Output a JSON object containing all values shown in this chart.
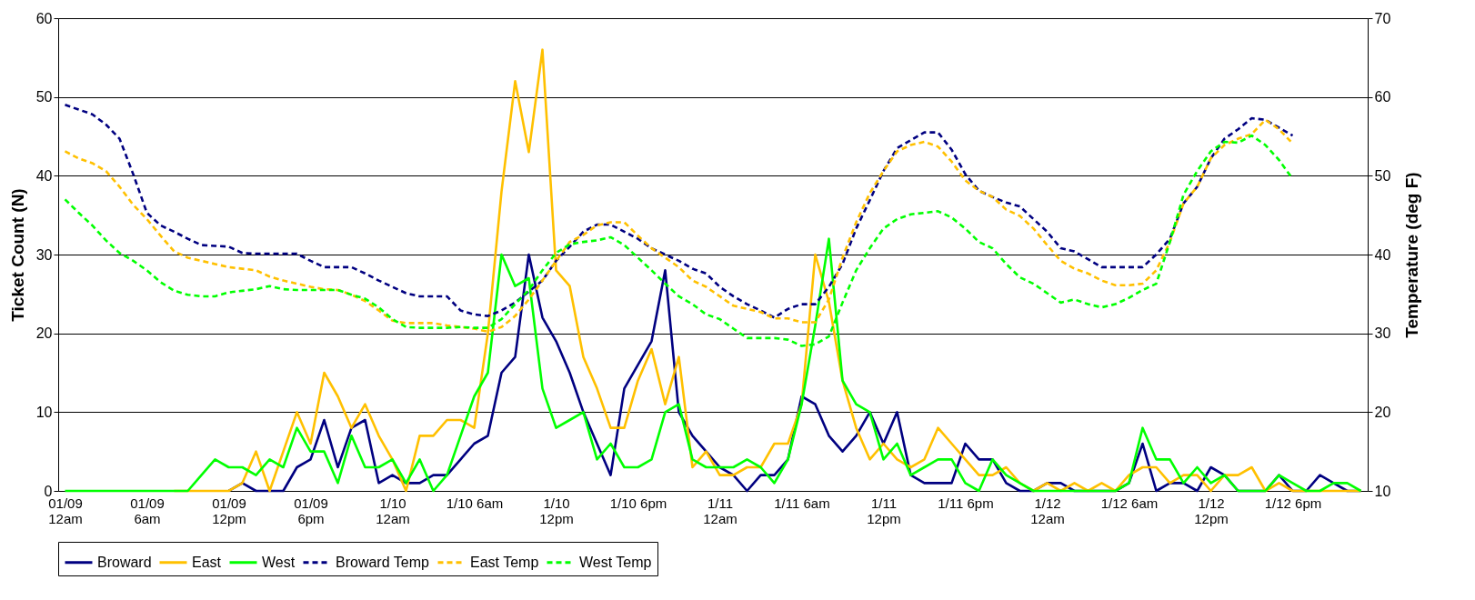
{
  "chart_data": {
    "type": "line",
    "ylabel": "Ticket Count (N)",
    "y2label": "Temperature (deg F)",
    "categories": [
      "01/09\n12am",
      null,
      null,
      null,
      null,
      null,
      "01/09\n6am",
      null,
      null,
      null,
      null,
      null,
      "01/09\n12pm",
      null,
      null,
      null,
      null,
      null,
      "01/09\n6pm",
      null,
      null,
      null,
      null,
      null,
      "1/10\n12am",
      null,
      null,
      null,
      null,
      null,
      "1/10 6am",
      null,
      null,
      null,
      null,
      null,
      "1/10\n12pm",
      null,
      null,
      null,
      null,
      null,
      "1/10 6pm",
      null,
      null,
      null,
      null,
      null,
      "1/11\n12am",
      null,
      null,
      null,
      null,
      null,
      "1/11 6am",
      null,
      null,
      null,
      null,
      null,
      "1/11\n12pm",
      null,
      null,
      null,
      null,
      null,
      "1/11 6pm",
      null,
      null,
      null,
      null,
      null,
      "1/12\n12am",
      null,
      null,
      null,
      null,
      null,
      "1/12 6am",
      null,
      null,
      null,
      null,
      null,
      "1/12\n12pm",
      null,
      null,
      null,
      null,
      null,
      "1/12 6pm",
      null,
      null,
      null,
      null,
      null
    ],
    "ylim": [
      0,
      60
    ],
    "yticks": [
      0,
      10,
      20,
      30,
      40,
      50,
      60
    ],
    "y2lim": [
      10,
      70
    ],
    "y2ticks": [
      10,
      20,
      30,
      40,
      50,
      60,
      70
    ],
    "grid": "y",
    "legend": "bottom",
    "marker": "none",
    "series": [
      {
        "name": "Broward",
        "color": "#000080",
        "line_style": "solid",
        "values": [
          null,
          null,
          null,
          null,
          null,
          null,
          null,
          null,
          null,
          null,
          null,
          null,
          0,
          1,
          0,
          0,
          0,
          3,
          4,
          9,
          3,
          8,
          9,
          1,
          2,
          1,
          1,
          2,
          2,
          4,
          6,
          7,
          15,
          17,
          30,
          22,
          19,
          15,
          10,
          6,
          2,
          13,
          16,
          19,
          28,
          10,
          7,
          5,
          3,
          2,
          0,
          2,
          2,
          4,
          12,
          11,
          7,
          5,
          7,
          10,
          6,
          10,
          2,
          1,
          1,
          1,
          6,
          4,
          4,
          1,
          0,
          0,
          1,
          1,
          0,
          0,
          0,
          0,
          1,
          6,
          0,
          1,
          1,
          0,
          3,
          2,
          0,
          0,
          0,
          2,
          0,
          0,
          2,
          1,
          0,
          0
        ]
      },
      {
        "name": "East",
        "color": "#ffc000",
        "line_style": "solid",
        "values": [
          null,
          null,
          null,
          null,
          null,
          null,
          null,
          null,
          0,
          0,
          0,
          0,
          0,
          1,
          5,
          0,
          5,
          10,
          6,
          15,
          12,
          8,
          11,
          7,
          4,
          0,
          7,
          7,
          9,
          9,
          8,
          20,
          38,
          52,
          43,
          56,
          28,
          26,
          17,
          13,
          8,
          8,
          14,
          18,
          11,
          17,
          3,
          5,
          2,
          2,
          3,
          3,
          6,
          6,
          11,
          30,
          24,
          14,
          8,
          4,
          6,
          4,
          3,
          4,
          8,
          6,
          4,
          2,
          2,
          3,
          1,
          0,
          1,
          0,
          1,
          0,
          1,
          0,
          2,
          3,
          3,
          1,
          2,
          2,
          0,
          2,
          2,
          3,
          0,
          1,
          0,
          0,
          0,
          0,
          0,
          0
        ]
      },
      {
        "name": "West",
        "color": "#00ff00",
        "line_style": "solid",
        "values": [
          0,
          0,
          0,
          0,
          0,
          0,
          0,
          0,
          0,
          0,
          2,
          4,
          3,
          3,
          2,
          4,
          3,
          8,
          5,
          5,
          1,
          7,
          3,
          3,
          4,
          1,
          4,
          0,
          2,
          7,
          12,
          15,
          30,
          26,
          27,
          13,
          8,
          9,
          10,
          4,
          6,
          3,
          3,
          4,
          10,
          11,
          4,
          3,
          3,
          3,
          4,
          3,
          1,
          4,
          11,
          21,
          32,
          14,
          11,
          10,
          4,
          6,
          2,
          3,
          4,
          4,
          1,
          0,
          4,
          2,
          1,
          0,
          0,
          0,
          0,
          0,
          0,
          0,
          1,
          8,
          4,
          4,
          1,
          3,
          1,
          2,
          0,
          0,
          0,
          2,
          1,
          0,
          0,
          1,
          1,
          0
        ]
      },
      {
        "name": "Broward Temp",
        "color": "#000080",
        "line_style": "dashed",
        "axis": "y2",
        "values": [
          59,
          58.4,
          57.8,
          56.5,
          54.7,
          50.2,
          45.3,
          43.7,
          42.9,
          42,
          41.2,
          41.1,
          41,
          40.2,
          40.1,
          40.1,
          40.1,
          40.1,
          39.2,
          38.4,
          38.4,
          38.4,
          37.6,
          36.7,
          35.9,
          35.1,
          34.7,
          34.7,
          34.7,
          32.9,
          32.4,
          32.2,
          32.9,
          33.9,
          35.3,
          36.7,
          39.2,
          41,
          42.9,
          43.8,
          43.8,
          42.9,
          42,
          40.8,
          40,
          39.2,
          38.2,
          37.6,
          35.9,
          34.7,
          33.7,
          32.9,
          32,
          33.1,
          33.7,
          33.7,
          35.9,
          38.8,
          43.3,
          46.9,
          50.6,
          53.5,
          54.5,
          55.5,
          55.5,
          53.3,
          50.2,
          48.1,
          47.3,
          46.6,
          46.1,
          44.5,
          42.9,
          40.8,
          40.4,
          39.4,
          38.4,
          38.4,
          38.4,
          38.4,
          40,
          42,
          46.5,
          48.6,
          52.2,
          54.7,
          55.9,
          57.3,
          57.1,
          56.1,
          55.1,
          null,
          null,
          null,
          null,
          null
        ]
      },
      {
        "name": "East Temp",
        "color": "#ffc000",
        "line_style": "dashed",
        "axis": "y2",
        "values": [
          53.1,
          52.2,
          51.6,
          50.6,
          48.6,
          46.3,
          44.5,
          42.4,
          40.4,
          39.6,
          39.2,
          38.8,
          38.4,
          38.2,
          38,
          37.2,
          36.7,
          36.3,
          35.9,
          35.6,
          35.5,
          34.9,
          34.1,
          32.9,
          31.6,
          31.3,
          31.3,
          31.3,
          31,
          30.8,
          30.6,
          30.2,
          30.8,
          32.2,
          34.3,
          36.7,
          39.2,
          41.6,
          42.5,
          43.7,
          44.1,
          44.1,
          42.4,
          40.8,
          39.6,
          38.4,
          36.7,
          35.9,
          34.7,
          33.5,
          33.1,
          32.7,
          31.9,
          31.9,
          31.4,
          31.4,
          34.3,
          39.6,
          44.1,
          47.8,
          50.6,
          53.1,
          53.9,
          54.3,
          53.7,
          51.8,
          49.4,
          48.1,
          47.3,
          45.7,
          44.9,
          43.3,
          41.2,
          39.2,
          38.2,
          37.6,
          36.7,
          36.1,
          36.1,
          36.3,
          38,
          41.6,
          46.5,
          48.6,
          52.2,
          53.9,
          54.7,
          55.3,
          57.1,
          55.9,
          54.1,
          null,
          null,
          null,
          null,
          null
        ]
      },
      {
        "name": "West Temp",
        "color": "#00ff00",
        "line_style": "dashed",
        "axis": "y2",
        "values": [
          47,
          45.3,
          43.7,
          41.8,
          40.2,
          39.2,
          38,
          36.5,
          35.4,
          34.9,
          34.7,
          34.7,
          35.2,
          35.4,
          35.6,
          36,
          35.6,
          35.5,
          35.5,
          35.5,
          35.5,
          34.9,
          34.4,
          33.3,
          31.8,
          30.8,
          30.7,
          30.7,
          30.7,
          30.8,
          30.7,
          30.7,
          31.8,
          33.7,
          35.5,
          38,
          40.2,
          41.3,
          41.6,
          41.8,
          42.2,
          41.2,
          39.6,
          38,
          36.3,
          34.7,
          33.7,
          32.4,
          31.8,
          30.6,
          29.4,
          29.4,
          29.4,
          29.2,
          28.4,
          28.6,
          29.6,
          33.9,
          38,
          40.8,
          43.3,
          44.5,
          45.1,
          45.3,
          45.5,
          44.7,
          43.3,
          41.6,
          40.8,
          38.8,
          37.1,
          36.3,
          35.1,
          33.9,
          34.3,
          33.7,
          33.3,
          33.7,
          34.5,
          35.5,
          36.3,
          41.6,
          47.6,
          50.6,
          53.1,
          54.3,
          54.2,
          55.1,
          53.9,
          52,
          49.6,
          null,
          null,
          null,
          null,
          null
        ]
      }
    ]
  }
}
